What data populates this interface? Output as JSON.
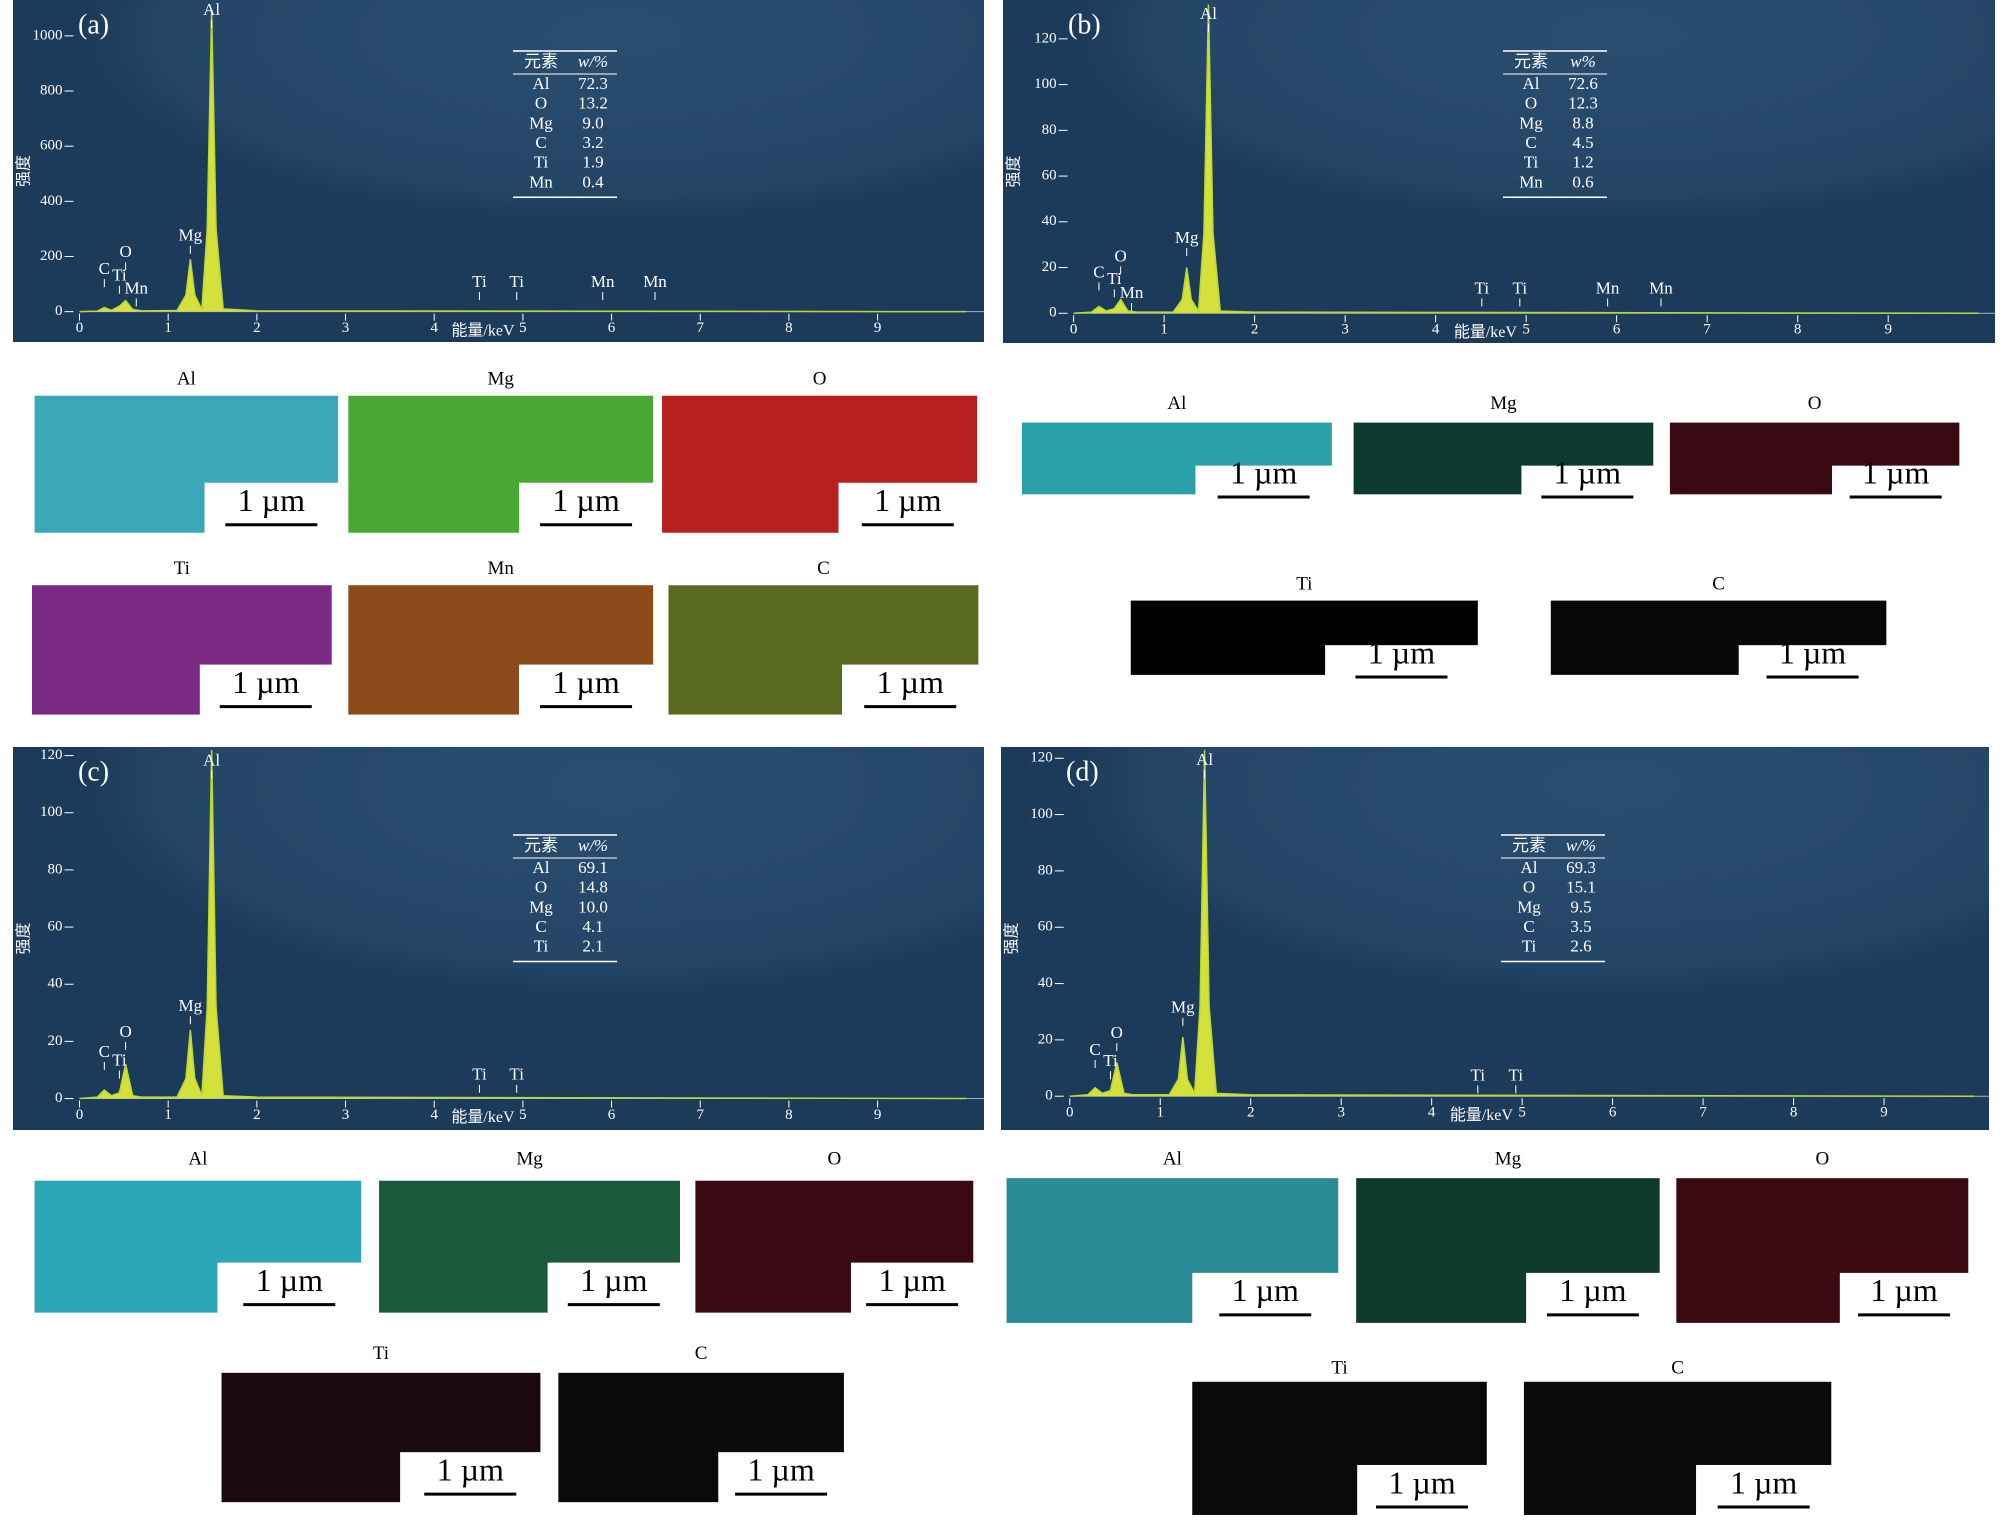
{
  "chart_data": [
    {
      "type": "line",
      "label": "(a)",
      "xlabel": "能量/keV",
      "ylabel": "强度",
      "x": [
        0,
        0.2,
        0.28,
        0.36,
        0.45,
        0.52,
        0.6,
        0.7,
        1.1,
        1.2,
        1.25,
        1.3,
        1.38,
        1.44,
        1.49,
        1.54,
        1.62,
        2,
        10
      ],
      "series": [
        {
          "color": "#d6e03a",
          "values": [
            0,
            2,
            15,
            5,
            20,
            40,
            8,
            3,
            4,
            60,
            190,
            60,
            8,
            300,
            1090,
            300,
            10,
            3,
            0
          ]
        }
      ],
      "xlim": [
        -0.75,
        10.2
      ],
      "ylim": [
        -110,
        1130
      ],
      "xticks": [
        0,
        1,
        2,
        3,
        4,
        5,
        6,
        7,
        8,
        9
      ],
      "yticks": [
        0,
        200,
        400,
        600,
        800,
        1000
      ],
      "annotations": [
        {
          "text": "C",
          "x": 0.28,
          "y": 89
        },
        {
          "text": "Ti",
          "x": 0.45,
          "y": 65
        },
        {
          "text": "O",
          "x": 0.52,
          "y": 150
        },
        {
          "text": "Mn",
          "x": 0.64,
          "y": 19
        },
        {
          "text": "Mg",
          "x": 1.25,
          "y": 210
        },
        {
          "text": "Al",
          "x": 1.49,
          "y": 1028
        },
        {
          "text": "Ti",
          "x": 4.51,
          "y": 42
        },
        {
          "text": "Ti",
          "x": 4.93,
          "y": 42
        },
        {
          "text": "Mn",
          "x": 5.9,
          "y": 42
        },
        {
          "text": "Mn",
          "x": 6.49,
          "y": 42
        }
      ],
      "table": {
        "header": [
          "元素",
          "w/%"
        ],
        "rows": [
          [
            "Al",
            "72.3"
          ],
          [
            "O",
            "13.2"
          ],
          [
            "Mg",
            "9.0"
          ],
          [
            "C",
            "3.2"
          ],
          [
            "Ti",
            "1.9"
          ],
          [
            "Mn",
            "0.4"
          ]
        ]
      },
      "maps": [
        {
          "label": "Al",
          "color": "#3aa8b8",
          "scale": "1 µm"
        },
        {
          "label": "Mg",
          "color": "#48a832",
          "scale": "1 µm"
        },
        {
          "label": "O",
          "color": "#b82020",
          "scale": "1 µm"
        },
        {
          "label": "Ti",
          "color": "#7a2a82",
          "scale": "1 µm"
        },
        {
          "label": "Mn",
          "color": "#8a4a1a",
          "scale": "1 µm"
        },
        {
          "label": "C",
          "color": "#5a6a20",
          "scale": "1 µm"
        }
      ]
    },
    {
      "type": "line",
      "label": "(b)",
      "xlabel": "能量/keV",
      "ylabel": "强度",
      "x": [
        0,
        0.2,
        0.28,
        0.36,
        0.45,
        0.52,
        0.6,
        0.7,
        1.1,
        1.2,
        1.25,
        1.3,
        1.38,
        1.44,
        1.49,
        1.54,
        1.62,
        2,
        10
      ],
      "series": [
        {
          "color": "#d6e03a",
          "values": [
            0,
            0.5,
            3,
            1,
            2,
            6,
            1,
            0.5,
            0.5,
            6,
            20,
            6,
            1,
            35,
            135,
            35,
            1,
            0.5,
            0
          ]
        }
      ],
      "xlim": [
        -0.78,
        10.18
      ],
      "ylim": [
        -13,
        137
      ],
      "xticks": [
        0,
        1,
        2,
        3,
        4,
        5,
        6,
        7,
        8,
        9
      ],
      "yticks": [
        0,
        20,
        40,
        60,
        80,
        100,
        120
      ],
      "annotations": [
        {
          "text": "C",
          "x": 0.28,
          "y": 10
        },
        {
          "text": "Ti",
          "x": 0.45,
          "y": 7
        },
        {
          "text": "O",
          "x": 0.52,
          "y": 17
        },
        {
          "text": "Mn",
          "x": 0.64,
          "y": 1
        },
        {
          "text": "Mg",
          "x": 1.25,
          "y": 25
        },
        {
          "text": "Al",
          "x": 1.49,
          "y": 123
        },
        {
          "text": "Ti",
          "x": 4.51,
          "y": 3
        },
        {
          "text": "Ti",
          "x": 4.93,
          "y": 3
        },
        {
          "text": "Mn",
          "x": 5.9,
          "y": 3
        },
        {
          "text": "Mn",
          "x": 6.49,
          "y": 3
        }
      ],
      "table": {
        "header": [
          "元素",
          "w%"
        ],
        "rows": [
          [
            "Al",
            "72.6"
          ],
          [
            "O",
            "12.3"
          ],
          [
            "Mg",
            "8.8"
          ],
          [
            "C",
            "4.5"
          ],
          [
            "Ti",
            "1.2"
          ],
          [
            "Mn",
            "0.6"
          ]
        ]
      },
      "maps": [
        {
          "label": "Al",
          "color": "#2aa0a8",
          "scale": "1 µm"
        },
        {
          "label": "Mg",
          "color": "#0c3a2e",
          "scale": "1 µm"
        },
        {
          "label": "O",
          "color": "#3a0a14",
          "scale": "1 µm"
        },
        {
          "label": "Ti",
          "color": "#000000",
          "scale": "1 µm"
        },
        {
          "label": "C",
          "color": "#080808",
          "scale": "1 µm"
        }
      ]
    },
    {
      "type": "line",
      "label": "(c)",
      "xlabel": "能量/keV",
      "ylabel": "强度",
      "x": [
        0,
        0.2,
        0.28,
        0.36,
        0.45,
        0.52,
        0.6,
        0.7,
        1.1,
        1.2,
        1.25,
        1.3,
        1.38,
        1.44,
        1.49,
        1.54,
        1.62,
        2,
        10
      ],
      "series": [
        {
          "color": "#d6e03a",
          "values": [
            0,
            0.5,
            3,
            1,
            2,
            12,
            1,
            0.5,
            0.5,
            7,
            24,
            7,
            1,
            32,
            122,
            32,
            1,
            0.5,
            0
          ]
        }
      ],
      "xlim": [
        -0.75,
        10.2
      ],
      "ylim": [
        -11,
        123
      ],
      "xticks": [
        0,
        1,
        2,
        3,
        4,
        5,
        6,
        7,
        8,
        9
      ],
      "yticks": [
        0,
        20,
        40,
        60,
        80,
        100,
        120
      ],
      "annotations": [
        {
          "text": "C",
          "x": 0.28,
          "y": 10
        },
        {
          "text": "Ti",
          "x": 0.45,
          "y": 7
        },
        {
          "text": "O",
          "x": 0.52,
          "y": 17
        },
        {
          "text": "Mg",
          "x": 1.25,
          "y": 26
        },
        {
          "text": "Al",
          "x": 1.49,
          "y": 112
        },
        {
          "text": "Ti",
          "x": 4.51,
          "y": 2
        },
        {
          "text": "Ti",
          "x": 4.93,
          "y": 2
        }
      ],
      "table": {
        "header": [
          "元素",
          "w/%"
        ],
        "rows": [
          [
            "Al",
            "69.1"
          ],
          [
            "O",
            "14.8"
          ],
          [
            "Mg",
            "10.0"
          ],
          [
            "C",
            "4.1"
          ],
          [
            "Ti",
            "2.1"
          ]
        ]
      },
      "maps": [
        {
          "label": "Al",
          "color": "#2aa6b6",
          "scale": "1 µm"
        },
        {
          "label": "Mg",
          "color": "#1a5a3a",
          "scale": "1 µm"
        },
        {
          "label": "O",
          "color": "#3a0a14",
          "scale": "1 µm"
        },
        {
          "label": "Ti",
          "color": "#1a0a10",
          "scale": "1 µm"
        },
        {
          "label": "C",
          "color": "#0a0a0a",
          "scale": "1 µm"
        }
      ]
    },
    {
      "type": "line",
      "label": "(d)",
      "xlabel": "能量/keV",
      "ylabel": "强度",
      "x": [
        0,
        0.2,
        0.28,
        0.36,
        0.45,
        0.52,
        0.6,
        0.7,
        1.1,
        1.2,
        1.25,
        1.3,
        1.38,
        1.44,
        1.49,
        1.54,
        1.62,
        2,
        10
      ],
      "series": [
        {
          "color": "#d6e03a",
          "values": [
            0,
            0.5,
            3,
            1,
            2,
            12,
            1,
            0.5,
            0.5,
            6,
            21,
            6,
            1,
            32,
            123,
            32,
            1,
            0.5,
            0
          ]
        }
      ],
      "xlim": [
        -0.76,
        10.16
      ],
      "ylim": [
        -12,
        124
      ],
      "xticks": [
        0,
        1,
        2,
        3,
        4,
        5,
        6,
        7,
        8,
        9
      ],
      "yticks": [
        0,
        20,
        40,
        60,
        80,
        100,
        120
      ],
      "annotations": [
        {
          "text": "C",
          "x": 0.28,
          "y": 10
        },
        {
          "text": "Ti",
          "x": 0.45,
          "y": 6
        },
        {
          "text": "O",
          "x": 0.52,
          "y": 16
        },
        {
          "text": "Mg",
          "x": 1.25,
          "y": 25
        },
        {
          "text": "Al",
          "x": 1.49,
          "y": 113
        },
        {
          "text": "Ti",
          "x": 4.51,
          "y": 1
        },
        {
          "text": "Ti",
          "x": 4.93,
          "y": 1
        }
      ],
      "table": {
        "header": [
          "元素",
          "w/%"
        ],
        "rows": [
          [
            "Al",
            "69.3"
          ],
          [
            "O",
            "15.1"
          ],
          [
            "Mg",
            "9.5"
          ],
          [
            "C",
            "3.5"
          ],
          [
            "Ti",
            "2.6"
          ]
        ]
      },
      "maps": [
        {
          "label": "Al",
          "color": "#2a8a96",
          "scale": "1 µm"
        },
        {
          "label": "Mg",
          "color": "#0e3a2c",
          "scale": "1 µm"
        },
        {
          "label": "O",
          "color": "#3a0a12",
          "scale": "1 µm"
        },
        {
          "label": "Ti",
          "color": "#0a0a0a",
          "scale": "1 µm"
        },
        {
          "label": "C",
          "color": "#0a0a0a",
          "scale": "1 µm"
        }
      ]
    }
  ]
}
